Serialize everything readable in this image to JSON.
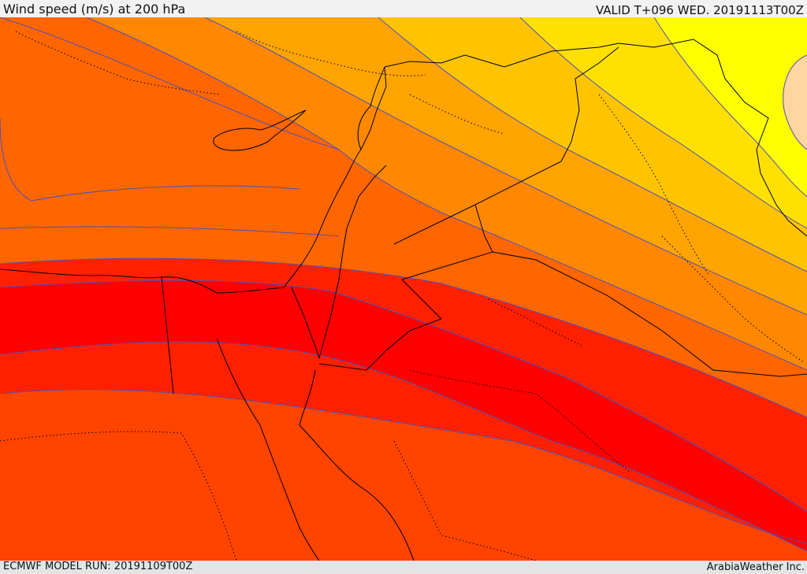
{
  "header": {
    "title": "Wind speed (m/s) at 200 hPa",
    "valid": "VALID T+096 WED. 20191113T00Z"
  },
  "footer": {
    "model_run": "ECMWF MODEL RUN: 20191109T00Z",
    "provider": "ArabiaWeather Inc."
  },
  "colors": {
    "band_0": "#ffd5a0",
    "band_1": "#ffff00",
    "band_2": "#ffe000",
    "band_3": "#ffc400",
    "band_4": "#ffa400",
    "band_5": "#ff8800",
    "band_6": "#ff6600",
    "band_7": "#ff4400",
    "band_8": "#ff2000",
    "band_9": "#ff0000",
    "contour": "#5050b4",
    "border": "#000000"
  }
}
